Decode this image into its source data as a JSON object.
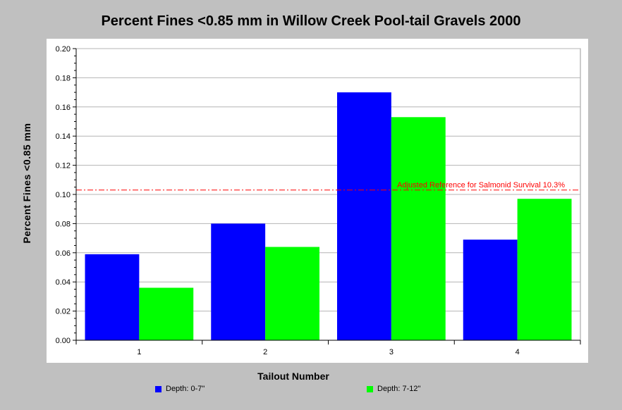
{
  "chart_data": {
    "type": "bar",
    "title": "Percent Fines <0.85 mm in Willow Creek Pool-tail Gravels 2000",
    "xlabel": "Tailout Number",
    "ylabel": "Percent Fines <0.85 mm",
    "categories": [
      "1",
      "2",
      "3",
      "4"
    ],
    "series": [
      {
        "name": "Depth: 0-7\"",
        "color": "#0000ff",
        "values": [
          0.059,
          0.08,
          0.17,
          0.069
        ]
      },
      {
        "name": "Depth: 7-12\"",
        "color": "#00ff00",
        "values": [
          0.036,
          0.064,
          0.153,
          0.097
        ]
      }
    ],
    "ylim": [
      0,
      0.2
    ],
    "yticks": [
      "0.00",
      "0.02",
      "0.04",
      "0.06",
      "0.08",
      "0.10",
      "0.12",
      "0.14",
      "0.16",
      "0.18",
      "0.20"
    ],
    "grid": true,
    "legend_position": "bottom",
    "reference_line": {
      "value": 0.103,
      "label": "Adjusted Reference for Salmonid Survival 10.3%",
      "color": "#ff0000"
    }
  }
}
